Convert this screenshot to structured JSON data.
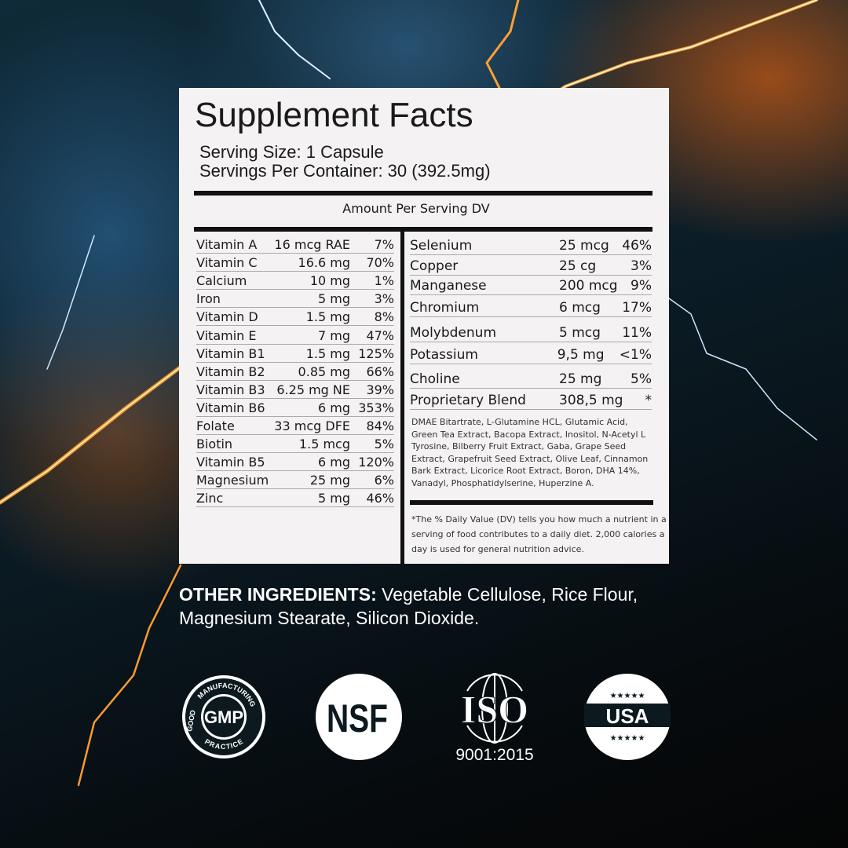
{
  "title": "Supplement Facts",
  "serving_size": "Serving Size: 1 Capsule",
  "servings_per_container": "Servings Per Container: 30 (392.5mg)",
  "amount_header": "Amount Per Serving DV",
  "left_nutrients": [
    {
      "name": "Vitamin A",
      "amount": "16 mcg RAE",
      "dv": "7%"
    },
    {
      "name": "Vitamin C",
      "amount": "16.6 mg",
      "dv": "70%"
    },
    {
      "name": "Calcium",
      "amount": "10 mg",
      "dv": "1%"
    },
    {
      "name": "Iron",
      "amount": "5 mg",
      "dv": "3%"
    },
    {
      "name": "Vitamin D",
      "amount": "1.5 mg",
      "dv": "8%"
    },
    {
      "name": "Vitamin E",
      "amount": "7 mg",
      "dv": "47%"
    },
    {
      "name": "Vitamin B1",
      "amount": "1.5 mg",
      "dv": "125%"
    },
    {
      "name": "Vitamin B2",
      "amount": "0.85 mg",
      "dv": "66%"
    },
    {
      "name": "Vitamin B3",
      "amount": "6.25 mg NE",
      "dv": "39%"
    },
    {
      "name": "Vitamin B6",
      "amount": "6 mg",
      "dv": "353%"
    },
    {
      "name": "Folate",
      "amount": "33 mcg DFE",
      "dv": "84%"
    },
    {
      "name": "Biotin",
      "amount": "1.5 mcg",
      "dv": "5%"
    },
    {
      "name": "Vitamin B5",
      "amount": "6 mg",
      "dv": "120%"
    },
    {
      "name": "Magnesium",
      "amount": "25 mg",
      "dv": "6%"
    },
    {
      "name": "Zinc",
      "amount": "5 mg",
      "dv": "46%"
    }
  ],
  "right_nutrients": [
    {
      "name": "Selenium",
      "amount": "25 mcg",
      "dv": "46%"
    },
    {
      "name": "Copper",
      "amount": "25 cg",
      "dv": "3%"
    },
    {
      "name": "Manganese",
      "amount": "200 mcg",
      "dv": "9%"
    },
    {
      "name": "Chromium",
      "amount": "6 mcg",
      "dv": "17%"
    },
    {
      "name": "Molybdenum",
      "amount": "5 mcg",
      "dv": "11%"
    },
    {
      "name": "Potassium",
      "amount": "9,5 mg",
      "dv": "<1%"
    },
    {
      "name": "Choline",
      "amount": "25 mg",
      "dv": "5%"
    },
    {
      "name": "Proprietary Blend",
      "amount": "308,5 mg",
      "dv": "*"
    }
  ],
  "blend_ingredients": "DMAE Bitartrate, L-Glutamine HCL, Glutamic Acid, Green Tea Extract, Bacopa Extract, Inositol, N-Acetyl L Tyrosine, Bilberry Fruit Extract, Gaba, Grape Seed Extract, Grapefruit Seed Extract, Olive Leaf, Cinnamon Bark Extract, Licorice Root Extract, Boron, DHA 14%, Vanadyl, Phosphatidylserine, Huperzine A.",
  "dv_note": "*The % Daily Value (DV) tells you how much a nutrient in a serving of food contributes to a daily diet. 2,000 calories a day is used for general nutrition advice.",
  "other_label": "OTHER INGREDIENTS:",
  "other_text": " Vegetable Cellulose, Rice Flour, Magnesium Stearate, Silicon Dioxide.",
  "badges": {
    "gmp": "GMP",
    "gmp_top": "MANUFACTURING",
    "gmp_left": "GOOD",
    "gmp_bottom": "PRACTICE",
    "nsf": "NSF",
    "iso": "ISO",
    "iso_std": "9001:2015",
    "usa": "USA",
    "stars": "★★★★★"
  }
}
